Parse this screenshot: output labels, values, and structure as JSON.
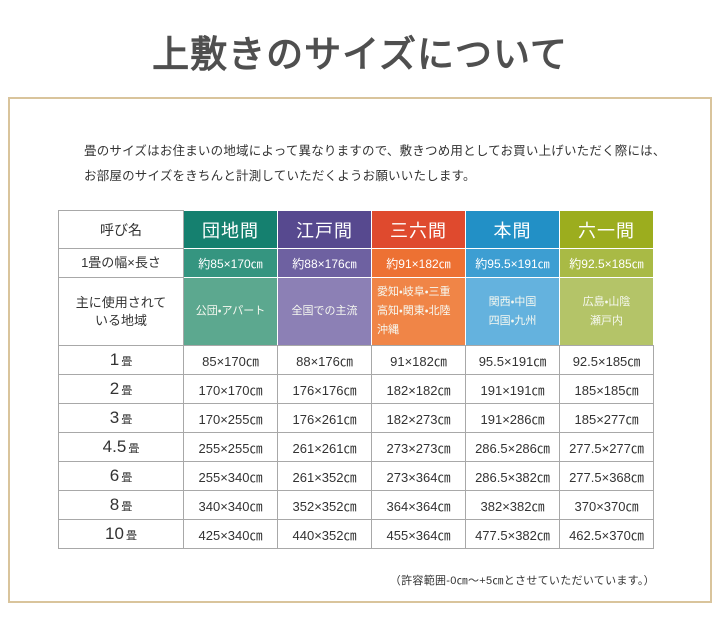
{
  "title": "上敷きのサイズについて",
  "intro": {
    "line1": "畳のサイズはお住まいの地域によって異なりますので、敷きつめ用としてお買い上げいただく際には、",
    "line2": "お部屋のサイズをきちんと計測していただくようお願いいたします。"
  },
  "panel": {
    "border_color": "#d9c49c"
  },
  "table": {
    "corner_label": "呼び名",
    "width_row_label": "1畳の幅×長さ",
    "region_row_label_lines": [
      "主に使用されて",
      "いる地域"
    ],
    "columns": [
      {
        "key": "danchima",
        "name": "団地間",
        "header_color": "#15806f",
        "width_color": "#359580",
        "region_color": "#5ca88f",
        "width_length": "約85×170㎝",
        "regions": [
          "公団・アパート"
        ]
      },
      {
        "key": "edoma",
        "name": "江戸間",
        "header_color": "#57498f",
        "width_color": "#6e61a1",
        "region_color": "#8c80b5",
        "width_length": "約88×176㎝",
        "regions": [
          "全国での主流"
        ]
      },
      {
        "key": "sanrokuma",
        "name": "三六間",
        "header_color": "#df4a2e",
        "width_color": "#ed7133",
        "region_color": "#f08547",
        "width_length": "約91×182㎝",
        "regions": [
          "愛知・岐阜・三重",
          "高知・関東・北陸",
          "沖縄"
        ]
      },
      {
        "key": "honma",
        "name": "本間",
        "header_color": "#2290c6",
        "width_color": "#3d9ed2",
        "region_color": "#64b2de",
        "width_length": "約95.5×191㎝",
        "regions": [
          "関西・中国",
          "四国・九州"
        ]
      },
      {
        "key": "rokuichima",
        "name": "六一間",
        "header_color": "#9cad1e",
        "width_color": "#a9ba45",
        "region_color": "#b4c468",
        "width_length": "約92.5×185㎝",
        "regions": [
          "広島・山陰",
          "瀬戸内"
        ]
      }
    ],
    "size_rows": [
      {
        "label_num": "1",
        "label_unit": "畳",
        "values": [
          "85×170㎝",
          "88×176㎝",
          "91×182㎝",
          "95.5×191㎝",
          "92.5×185㎝"
        ]
      },
      {
        "label_num": "2",
        "label_unit": "畳",
        "values": [
          "170×170㎝",
          "176×176㎝",
          "182×182㎝",
          "191×191㎝",
          "185×185㎝"
        ]
      },
      {
        "label_num": "3",
        "label_unit": "畳",
        "values": [
          "170×255㎝",
          "176×261㎝",
          "182×273㎝",
          "191×286㎝",
          "185×277㎝"
        ]
      },
      {
        "label_num": "4.5",
        "label_unit": "畳",
        "values": [
          "255×255㎝",
          "261×261㎝",
          "273×273㎝",
          "286.5×286㎝",
          "277.5×277㎝"
        ]
      },
      {
        "label_num": "6",
        "label_unit": "畳",
        "values": [
          "255×340㎝",
          "261×352㎝",
          "273×364㎝",
          "286.5×382㎝",
          "277.5×368㎝"
        ]
      },
      {
        "label_num": "8",
        "label_unit": "畳",
        "values": [
          "340×340㎝",
          "352×352㎝",
          "364×364㎝",
          "382×382㎝",
          "370×370㎝"
        ]
      },
      {
        "label_num": "10",
        "label_unit": "畳",
        "values": [
          "425×340㎝",
          "440×352㎝",
          "455×364㎝",
          "477.5×382㎝",
          "462.5×370㎝"
        ]
      }
    ],
    "footnote": "（許容範囲-0㎝〜+5㎝とさせていただいています。）"
  }
}
